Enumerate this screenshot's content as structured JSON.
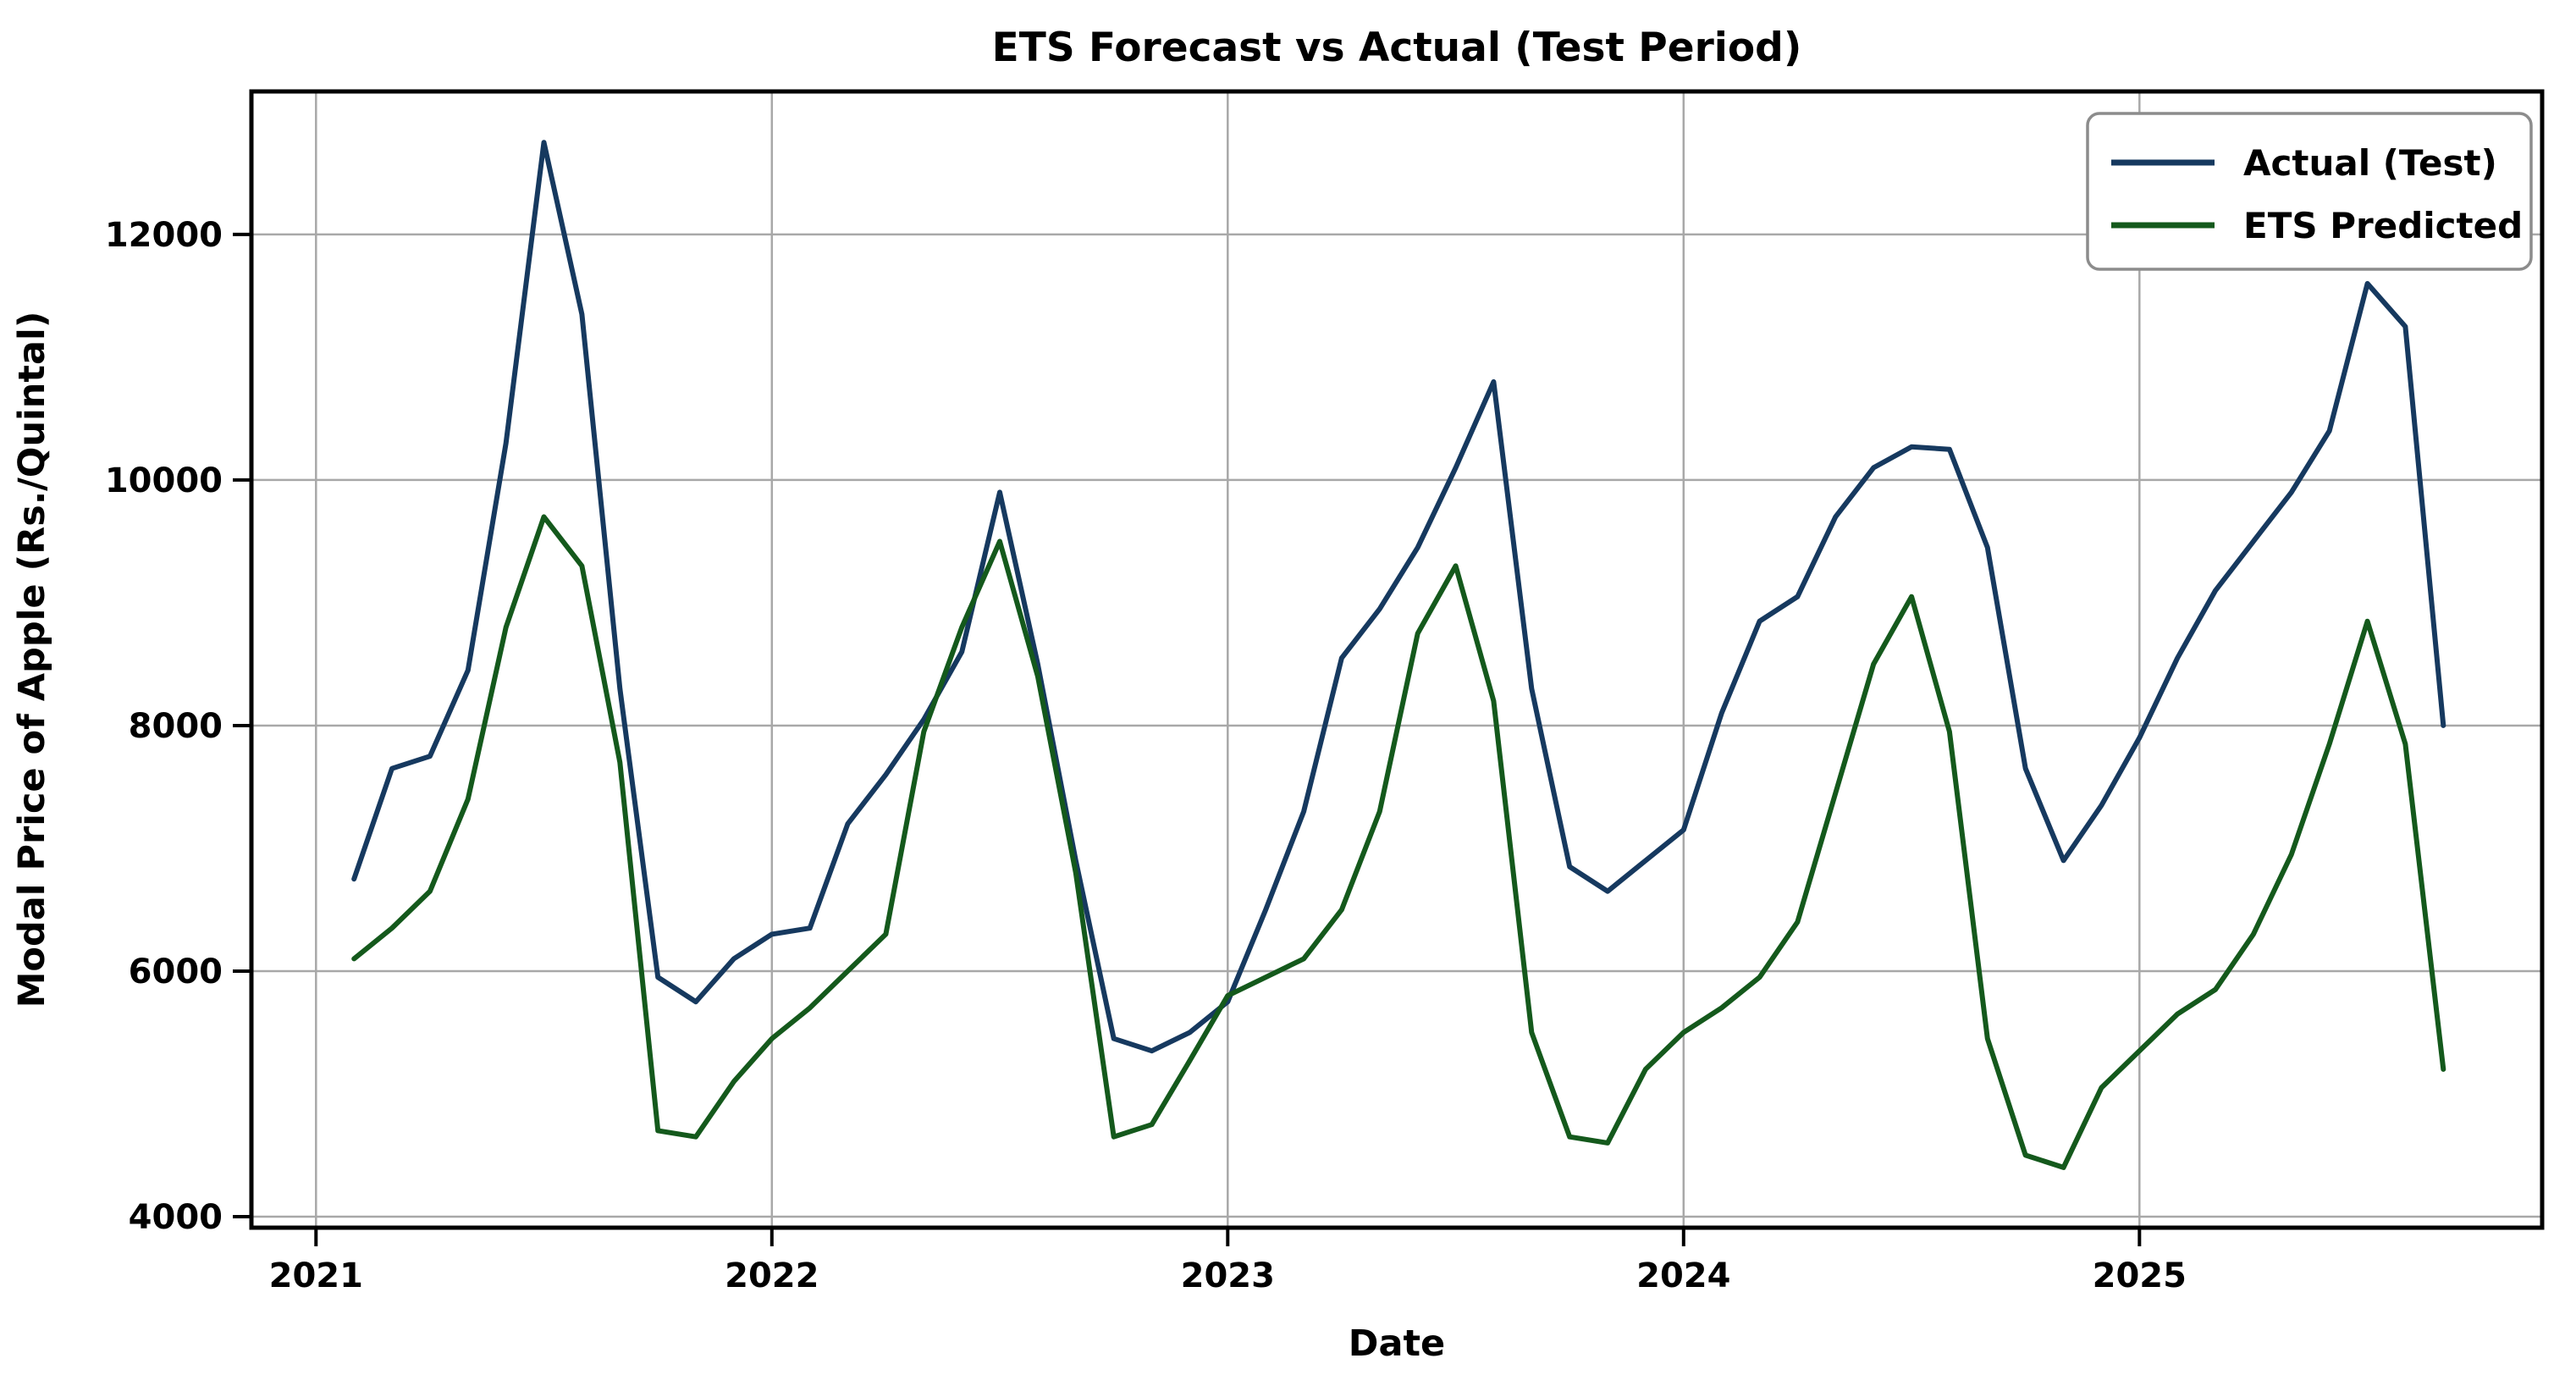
{
  "chart_data": {
    "type": "line",
    "title": "ETS Forecast vs Actual (Test Period)",
    "xlabel": "Date",
    "ylabel": "Modal Price of Apple (Rs./Quintal)",
    "grid": true,
    "background": "#ffffff",
    "spine_color": "#000000",
    "grid_color": "#a8a8a8",
    "xlim_months_since_jan2021": [
      -1.7,
      58.6
    ],
    "ylim": [
      3910,
      13165
    ],
    "yticks": [
      4000,
      6000,
      8000,
      10000,
      12000
    ],
    "xticks": [
      {
        "label": "2021",
        "t": 0
      },
      {
        "label": "2022",
        "t": 12
      },
      {
        "label": "2023",
        "t": 24
      },
      {
        "label": "2024",
        "t": 36
      },
      {
        "label": "2025",
        "t": 48
      }
    ],
    "months": [
      "2021-02",
      "2021-03",
      "2021-04",
      "2021-05",
      "2021-06",
      "2021-07",
      "2021-08",
      "2021-09",
      "2021-10",
      "2021-11",
      "2021-12",
      "2022-01",
      "2022-02",
      "2022-03",
      "2022-04",
      "2022-05",
      "2022-06",
      "2022-07",
      "2022-08",
      "2022-09",
      "2022-10",
      "2022-11",
      "2022-12",
      "2023-01",
      "2023-02",
      "2023-03",
      "2023-04",
      "2023-05",
      "2023-06",
      "2023-07",
      "2023-08",
      "2023-09",
      "2023-10",
      "2023-11",
      "2023-12",
      "2024-01",
      "2024-02",
      "2024-03",
      "2024-04",
      "2024-05",
      "2024-06",
      "2024-07",
      "2024-08",
      "2024-09",
      "2024-10",
      "2024-11",
      "2024-12",
      "2025-01",
      "2025-02",
      "2025-03",
      "2025-04",
      "2025-05",
      "2025-06",
      "2025-07",
      "2025-08",
      "2025-09"
    ],
    "series": [
      {
        "name": "Actual (Test)",
        "color": "#16395f",
        "values": [
          6750,
          7650,
          7750,
          8450,
          10300,
          12750,
          11350,
          8300,
          5950,
          5750,
          6100,
          6300,
          6350,
          7200,
          7600,
          8050,
          8600,
          9900,
          8500,
          6900,
          5450,
          5350,
          5500,
          5750,
          6500,
          7300,
          8550,
          8950,
          9450,
          10100,
          10800,
          8300,
          6850,
          6650,
          6900,
          7150,
          8100,
          8850,
          9050,
          9700,
          10100,
          10270,
          10250,
          9450,
          7650,
          6900,
          7350,
          7900,
          8550,
          9100,
          9500,
          9900,
          10400,
          11600,
          11250,
          8000
        ]
      },
      {
        "name": "ETS Predicted",
        "color": "#14591c",
        "values": [
          6100,
          6350,
          6650,
          7400,
          8800,
          9700,
          9300,
          7700,
          4700,
          4650,
          5100,
          5450,
          5700,
          6000,
          6300,
          7950,
          8800,
          9500,
          8400,
          6800,
          4650,
          4750,
          5270,
          5800,
          5950,
          6100,
          6500,
          7300,
          8750,
          9300,
          8200,
          5500,
          4650,
          4600,
          5200,
          5500,
          5700,
          5950,
          6400,
          7450,
          8500,
          9050,
          7950,
          5450,
          4500,
          4400,
          5050,
          5350,
          5650,
          5850,
          6300,
          6950,
          7850,
          8850,
          7850,
          5200
        ]
      }
    ],
    "legend": {
      "position": "upper right"
    }
  }
}
